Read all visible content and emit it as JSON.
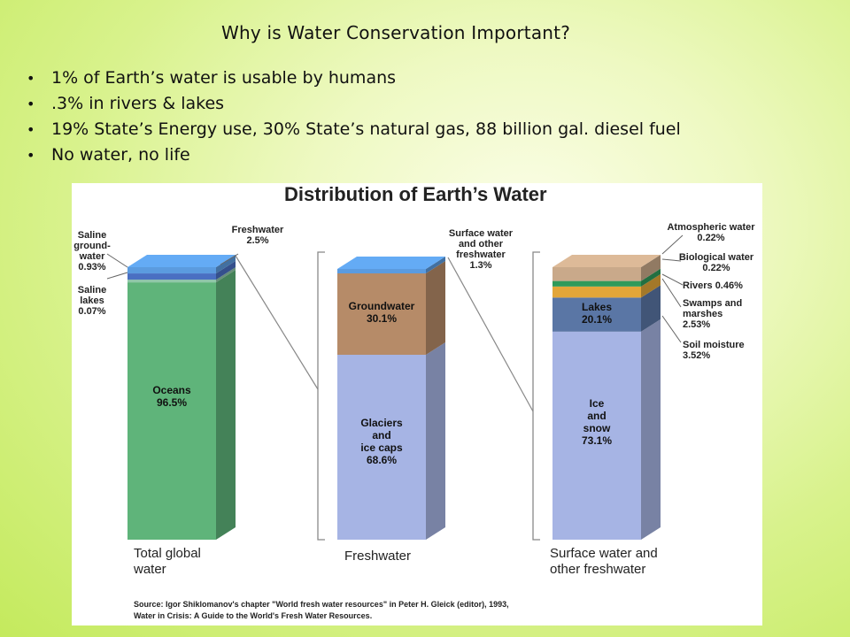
{
  "slide": {
    "title": "Why is Water Conservation Important?",
    "bullets": [
      "1% of Earth’s water is usable by humans",
      ".3% in rivers & lakes",
      "19% State’s Energy use, 30% State’s natural gas, 88 billion gal. diesel fuel",
      "No water, no life"
    ]
  },
  "figure": {
    "title": "Distribution of Earth’s Water",
    "source_line1": "Source: Igor Shiklomanov's chapter \"World fresh water resources\" in Peter H. Gleick (editor), 1993,",
    "source_line2": "Water in Crisis: A Guide to the World's Fresh Water Resources."
  },
  "colors": {
    "oceans": "#5fb47a",
    "freshwater": "#5b9bdf",
    "saline_groundwater": "#4a6fc2",
    "saline_lakes": "#8fc7a8",
    "groundwater": "#b68b68",
    "glaciers": "#a6b4e4",
    "lakes": "#5a76a5",
    "rivers": "#e3a639",
    "swamps": "#3e9a6a",
    "biological": "#2f9a5a",
    "atmospheric": "#c9a98a",
    "soil_moisture": "#3b6f73"
  },
  "chart_data": [
    {
      "type": "bar",
      "stacked": true,
      "title": "Distribution of Earth’s Water",
      "categories": [
        "Total global water"
      ],
      "series": [
        {
          "name": "Oceans",
          "values": [
            96.5
          ]
        },
        {
          "name": "Saline lakes",
          "values": [
            0.07
          ]
        },
        {
          "name": "Saline groundwater",
          "values": [
            0.93
          ]
        },
        {
          "name": "Freshwater",
          "values": [
            2.5
          ]
        }
      ],
      "labels": {
        "oceans": "Oceans\n96.5%",
        "saline_groundwater": "Saline\nground-\nwater\n0.93%",
        "saline_lakes": "Saline\nlakes\n0.07%",
        "freshwater": "Freshwater\n2.5%",
        "caption": "Total global\nwater"
      }
    },
    {
      "type": "bar",
      "stacked": true,
      "categories": [
        "Freshwater"
      ],
      "series": [
        {
          "name": "Glaciers and ice caps",
          "values": [
            68.6
          ]
        },
        {
          "name": "Groundwater",
          "values": [
            30.1
          ]
        },
        {
          "name": "Surface water and other freshwater",
          "values": [
            1.3
          ]
        }
      ],
      "labels": {
        "glaciers": "Glaciers\nand\nice caps\n68.6%",
        "groundwater": "Groundwater\n30.1%",
        "surface": "Surface water\nand other\nfreshwater\n1.3%",
        "caption": "Freshwater"
      }
    },
    {
      "type": "bar",
      "stacked": true,
      "categories": [
        "Surface water and other freshwater"
      ],
      "series": [
        {
          "name": "Ice and snow",
          "values": [
            73.1
          ]
        },
        {
          "name": "Lakes",
          "values": [
            20.1
          ]
        },
        {
          "name": "Soil moisture",
          "values": [
            3.52
          ]
        },
        {
          "name": "Swamps and marshes",
          "values": [
            2.53
          ]
        },
        {
          "name": "Rivers",
          "values": [
            0.46
          ]
        },
        {
          "name": "Biological water",
          "values": [
            0.22
          ]
        },
        {
          "name": "Atmospheric water",
          "values": [
            0.22
          ]
        }
      ],
      "labels": {
        "ice": "Ice\nand\nsnow\n73.1%",
        "lakes": "Lakes\n20.1%",
        "atmospheric": "Atmospheric water\n0.22%",
        "biological": "Biological water\n0.22%",
        "rivers": "Rivers  0.46%",
        "swamps": "Swamps and\nmarshes\n2.53%",
        "soil": "Soil moisture\n3.52%",
        "caption": "Surface water and\nother freshwater"
      }
    }
  ]
}
